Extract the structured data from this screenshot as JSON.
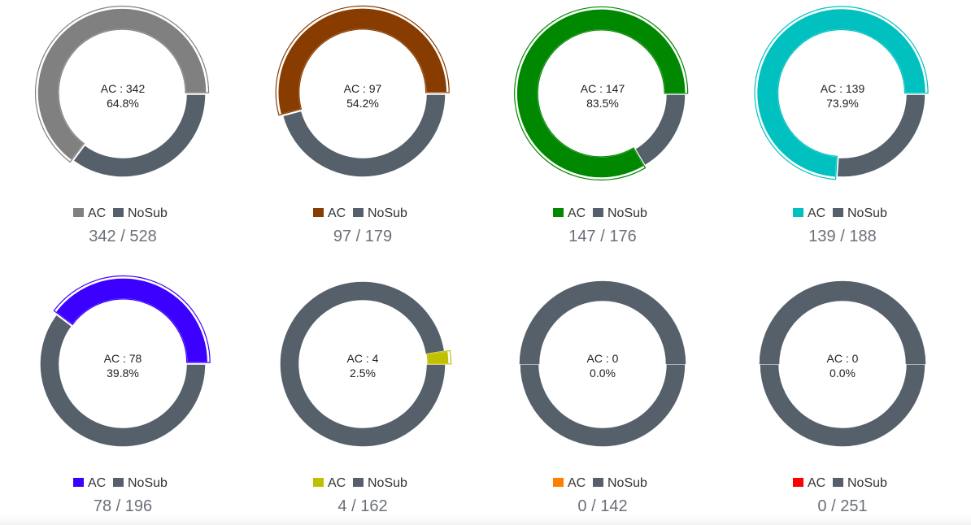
{
  "colors": {
    "nosub": "#56606b",
    "background": "#ffffff"
  },
  "legend": {
    "ac_label": "AC",
    "nosub_label": "NoSub"
  },
  "chart_data": [
    {
      "type": "pie",
      "categories": [
        "AC",
        "NoSub"
      ],
      "values": [
        342,
        186
      ],
      "total": 528,
      "center_line1": "AC : 342",
      "center_line2": "64.8%",
      "count_label": "342 / 528",
      "ac_color": "#808080",
      "highlighted": true
    },
    {
      "type": "pie",
      "categories": [
        "AC",
        "NoSub"
      ],
      "values": [
        97,
        82
      ],
      "total": 179,
      "center_line1": "AC : 97",
      "center_line2": "54.2%",
      "count_label": "97 / 179",
      "ac_color": "#883c00",
      "highlighted": true
    },
    {
      "type": "pie",
      "categories": [
        "AC",
        "NoSub"
      ],
      "values": [
        147,
        29
      ],
      "total": 176,
      "center_line1": "AC : 147",
      "center_line2": "83.5%",
      "count_label": "147 / 176",
      "ac_color": "#008800",
      "highlighted": true
    },
    {
      "type": "pie",
      "categories": [
        "AC",
        "NoSub"
      ],
      "values": [
        139,
        49
      ],
      "total": 188,
      "center_line1": "AC : 139",
      "center_line2": "73.9%",
      "count_label": "139 / 188",
      "ac_color": "#00c0c0",
      "highlighted": true
    },
    {
      "type": "pie",
      "categories": [
        "AC",
        "NoSub"
      ],
      "values": [
        78,
        118
      ],
      "total": 196,
      "center_line1": "AC : 78",
      "center_line2": "39.8%",
      "count_label": "78 / 196",
      "ac_color": "#3b00ff",
      "highlighted": true
    },
    {
      "type": "pie",
      "categories": [
        "AC",
        "NoSub"
      ],
      "values": [
        4,
        158
      ],
      "total": 162,
      "center_line1": "AC : 4",
      "center_line2": "2.5%",
      "count_label": "4 / 162",
      "ac_color": "#c0c000",
      "highlighted": true
    },
    {
      "type": "pie",
      "categories": [
        "AC",
        "NoSub"
      ],
      "values": [
        0,
        142
      ],
      "total": 142,
      "center_line1": "AC : 0",
      "center_line2": "0.0%",
      "count_label": "0 / 142",
      "ac_color": "#ff8000",
      "highlighted": false
    },
    {
      "type": "pie",
      "categories": [
        "AC",
        "NoSub"
      ],
      "values": [
        0,
        251
      ],
      "total": 251,
      "center_line1": "AC : 0",
      "center_line2": "0.0%",
      "count_label": "0 / 251",
      "ac_color": "#ff0000",
      "highlighted": false
    }
  ]
}
